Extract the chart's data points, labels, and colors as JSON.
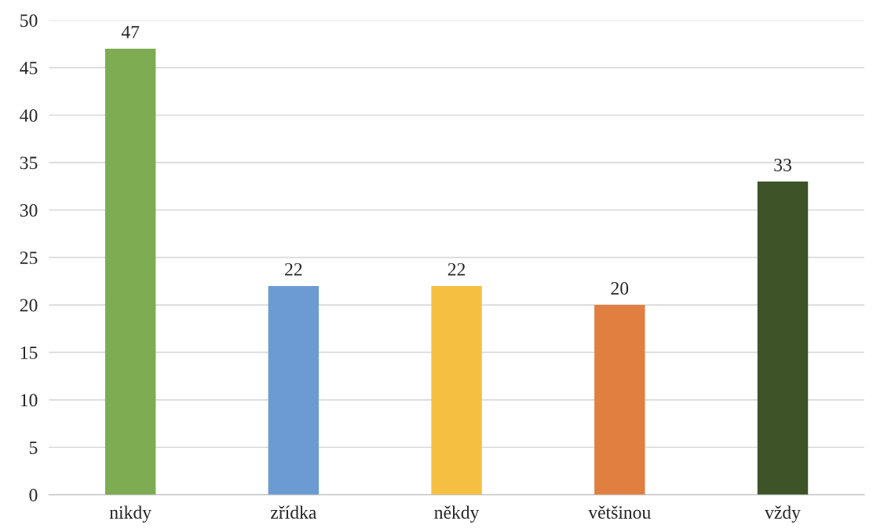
{
  "chart_data": {
    "type": "bar",
    "categories": [
      "nikdy",
      "zřídka",
      "někdy",
      "většinou",
      "vždy"
    ],
    "values": [
      47,
      22,
      22,
      20,
      33
    ],
    "colors": [
      "#7dac52",
      "#6b9bd2",
      "#f5bf42",
      "#e07f3f",
      "#3e5428"
    ],
    "ylim": [
      0,
      50
    ],
    "yticks": [
      0,
      5,
      10,
      15,
      20,
      25,
      30,
      35,
      40,
      45,
      50
    ],
    "grid": "y",
    "data_labels": true
  }
}
